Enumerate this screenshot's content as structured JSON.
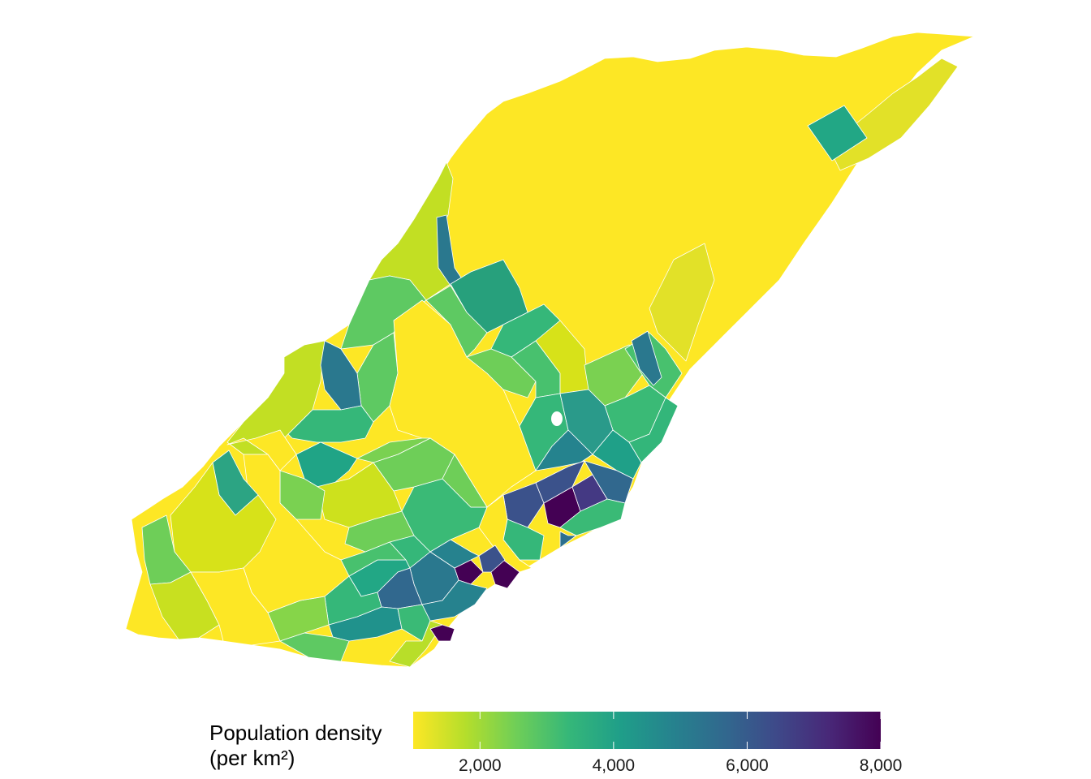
{
  "chart_data": {
    "type": "choropleth",
    "legend": {
      "title_line1": "Population density",
      "title_line2": "(per km²)",
      "min": 1000,
      "max": 8000,
      "ticks": [
        {
          "value": 2000,
          "label": "2,000"
        },
        {
          "value": 4000,
          "label": "4,000"
        },
        {
          "value": 6000,
          "label": "6,000"
        },
        {
          "value": 8000,
          "label": "8,000"
        }
      ],
      "palette": [
        "#fde725",
        "#b5de2b",
        "#6ece58",
        "#35b779",
        "#1f9e89",
        "#26828e",
        "#31688e",
        "#3e4989",
        "#482878",
        "#440154"
      ],
      "position": "bottom"
    }
  }
}
